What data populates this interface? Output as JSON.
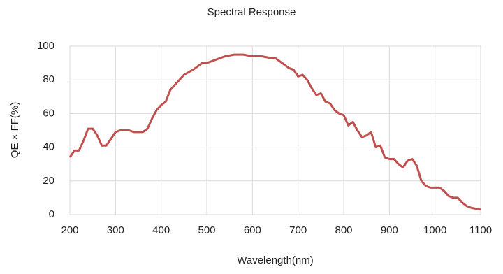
{
  "chart_data": {
    "type": "line",
    "title": "Spectral Response",
    "x_label": "Wavelength(nm)",
    "y_label": "QE × FF(%)",
    "x": [
      200,
      210,
      220,
      230,
      240,
      250,
      260,
      270,
      280,
      290,
      300,
      310,
      330,
      340,
      350,
      360,
      370,
      380,
      390,
      400,
      410,
      420,
      440,
      450,
      470,
      480,
      490,
      500,
      520,
      540,
      560,
      580,
      600,
      620,
      640,
      650,
      660,
      670,
      680,
      690,
      700,
      710,
      720,
      730,
      740,
      750,
      760,
      770,
      780,
      790,
      800,
      810,
      820,
      830,
      840,
      850,
      860,
      870,
      880,
      890,
      900,
      910,
      920,
      930,
      940,
      950,
      960,
      970,
      980,
      990,
      1000,
      1010,
      1020,
      1030,
      1040,
      1050,
      1060,
      1070,
      1080,
      1090,
      1100
    ],
    "series": [
      {
        "name": "QE × FF",
        "color": "#c0504d",
        "values": [
          34,
          38,
          38,
          44,
          51,
          51,
          47,
          41,
          41,
          45,
          49,
          50,
          50,
          49,
          49,
          49,
          51,
          57,
          62,
          65,
          67,
          74,
          80,
          83,
          86,
          88,
          90,
          90,
          92,
          94,
          95,
          95,
          94,
          94,
          93,
          93,
          91,
          89,
          87,
          86,
          82,
          83,
          80,
          75,
          71,
          72,
          67,
          66,
          62,
          60,
          59,
          53,
          55,
          50,
          46,
          47,
          49,
          40,
          41,
          34,
          33,
          33,
          30,
          28,
          32,
          33,
          29,
          20,
          17,
          16,
          16,
          16,
          14,
          11,
          10,
          10,
          7,
          5,
          4,
          3.5,
          3
        ]
      }
    ],
    "xlim": [
      200,
      1100
    ],
    "xticks": [
      200,
      300,
      400,
      500,
      600,
      700,
      800,
      900,
      1000,
      1100
    ],
    "ylim": [
      0,
      100
    ],
    "yticks": [
      0,
      20,
      40,
      60,
      80,
      100
    ],
    "grid": true
  }
}
